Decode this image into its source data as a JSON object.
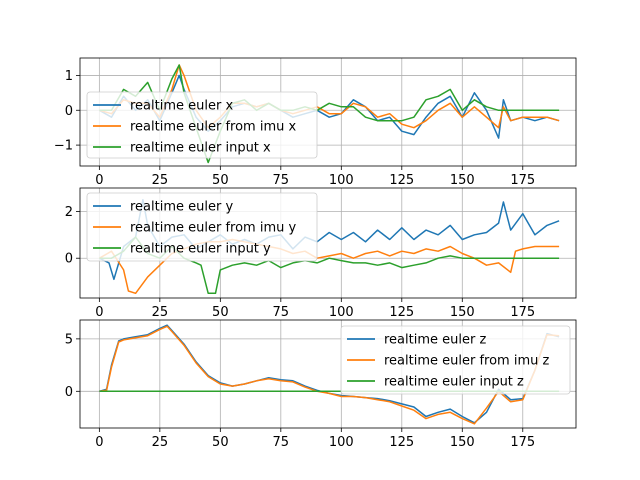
{
  "chart_data": [
    {
      "type": "line",
      "xlim": [
        -8,
        197
      ],
      "ylim": [
        -1.6,
        1.5
      ],
      "xticks": [
        0,
        25,
        50,
        75,
        100,
        125,
        150,
        175
      ],
      "yticks": [
        -1,
        0,
        1
      ],
      "grid": true,
      "legend_loc": "lower-left",
      "colors": [
        "#1f77b4",
        "#ff7f0e",
        "#2ca02c"
      ],
      "series": [
        {
          "name": "realtime euler x",
          "x": [
            0,
            5,
            10,
            15,
            20,
            25,
            30,
            33,
            35,
            40,
            45,
            50,
            55,
            60,
            65,
            70,
            75,
            80,
            85,
            90,
            95,
            100,
            105,
            110,
            115,
            120,
            125,
            130,
            135,
            140,
            145,
            150,
            155,
            160,
            165,
            167,
            170,
            175,
            180,
            185,
            190
          ],
          "y": [
            0.0,
            -0.2,
            0.4,
            0.0,
            0.3,
            -0.3,
            0.5,
            1.0,
            0.6,
            -0.2,
            -0.6,
            -0.3,
            0.1,
            0.2,
            0.1,
            0.2,
            0.0,
            -0.2,
            -0.1,
            0.0,
            -0.2,
            -0.1,
            0.3,
            0.1,
            -0.3,
            -0.2,
            -0.6,
            -0.7,
            -0.2,
            0.2,
            0.4,
            -0.2,
            0.5,
            0.0,
            -0.8,
            0.3,
            -0.3,
            -0.2,
            -0.3,
            -0.2,
            -0.3
          ]
        },
        {
          "name": "realtime euler from imu x",
          "x": [
            0,
            5,
            10,
            15,
            20,
            25,
            30,
            33,
            35,
            40,
            45,
            50,
            55,
            60,
            65,
            70,
            75,
            80,
            85,
            90,
            95,
            100,
            105,
            110,
            115,
            120,
            125,
            130,
            135,
            140,
            145,
            150,
            155,
            160,
            165,
            167,
            170,
            175,
            180,
            185,
            190
          ],
          "y": [
            0.0,
            -0.1,
            0.3,
            0.2,
            0.2,
            -0.2,
            0.6,
            1.3,
            1.0,
            0.0,
            -0.5,
            -0.2,
            0.2,
            0.2,
            0.1,
            0.2,
            0.0,
            -0.1,
            0.0,
            0.1,
            -0.1,
            -0.1,
            0.2,
            0.1,
            -0.2,
            -0.1,
            -0.4,
            -0.5,
            -0.3,
            0.0,
            0.2,
            -0.2,
            0.1,
            -0.2,
            -0.5,
            0.1,
            -0.3,
            -0.2,
            -0.2,
            -0.2,
            -0.3
          ]
        },
        {
          "name": "realtime euler input x",
          "x": [
            0,
            5,
            10,
            15,
            20,
            25,
            30,
            33,
            35,
            40,
            45,
            50,
            55,
            60,
            65,
            70,
            75,
            80,
            85,
            90,
            95,
            100,
            105,
            110,
            115,
            120,
            125,
            130,
            135,
            140,
            145,
            150,
            155,
            160,
            165,
            167,
            170,
            175,
            180,
            185,
            190
          ],
          "y": [
            0.0,
            0.0,
            0.6,
            0.4,
            0.8,
            0.0,
            0.9,
            1.3,
            0.5,
            -0.5,
            -1.5,
            -0.6,
            0.2,
            0.3,
            0.0,
            0.2,
            0.0,
            0.0,
            0.1,
            0.0,
            0.2,
            0.1,
            0.1,
            -0.2,
            -0.3,
            -0.3,
            -0.3,
            -0.2,
            0.3,
            0.4,
            0.6,
            0.0,
            0.3,
            0.1,
            0.0,
            0.0,
            0.0,
            0.0,
            0.0,
            0.0,
            0.0
          ]
        }
      ]
    },
    {
      "type": "line",
      "xlim": [
        -8,
        197
      ],
      "ylim": [
        -1.7,
        3.0
      ],
      "xticks": [
        0,
        25,
        50,
        75,
        100,
        125,
        150,
        175
      ],
      "yticks": [
        0,
        2
      ],
      "grid": true,
      "legend_loc": "upper-left",
      "colors": [
        "#1f77b4",
        "#ff7f0e",
        "#2ca02c"
      ],
      "series": [
        {
          "name": "realtime euler y",
          "x": [
            0,
            4,
            6,
            10,
            15,
            18,
            20,
            25,
            30,
            35,
            40,
            45,
            50,
            55,
            60,
            65,
            70,
            75,
            80,
            85,
            90,
            95,
            100,
            105,
            110,
            115,
            120,
            125,
            130,
            135,
            140,
            145,
            150,
            155,
            160,
            165,
            167,
            170,
            175,
            180,
            185,
            190
          ],
          "y": [
            0.0,
            -0.2,
            -0.9,
            0.5,
            0.9,
            2.5,
            1.4,
            0.5,
            0.9,
            1.0,
            0.4,
            0.7,
            1.0,
            0.6,
            0.8,
            0.6,
            0.9,
            1.0,
            0.4,
            0.9,
            0.7,
            1.1,
            0.8,
            1.1,
            0.7,
            1.2,
            0.8,
            1.3,
            0.8,
            1.2,
            1.0,
            1.4,
            0.8,
            1.0,
            1.1,
            1.5,
            2.4,
            1.2,
            1.9,
            1.0,
            1.4,
            1.6
          ]
        },
        {
          "name": "realtime euler from imu y",
          "x": [
            0,
            5,
            10,
            12,
            15,
            20,
            25,
            30,
            35,
            40,
            45,
            50,
            55,
            60,
            65,
            70,
            75,
            80,
            85,
            90,
            95,
            100,
            105,
            110,
            115,
            120,
            125,
            130,
            135,
            140,
            145,
            150,
            155,
            160,
            165,
            170,
            172,
            175,
            180,
            185,
            190
          ],
          "y": [
            0.0,
            0.3,
            -0.5,
            -1.4,
            -1.5,
            -0.8,
            -0.3,
            0.2,
            0.4,
            0.6,
            0.7,
            0.7,
            0.8,
            0.7,
            0.6,
            0.5,
            0.4,
            0.2,
            0.3,
            0.0,
            0.1,
            0.2,
            0.0,
            0.2,
            0.3,
            0.1,
            0.3,
            0.2,
            0.4,
            0.3,
            0.5,
            0.2,
            0.0,
            -0.3,
            -0.2,
            -0.6,
            0.3,
            0.4,
            0.5,
            0.5,
            0.5
          ]
        },
        {
          "name": "realtime euler input y",
          "x": [
            0,
            5,
            10,
            15,
            20,
            25,
            30,
            35,
            40,
            42,
            45,
            48,
            50,
            55,
            60,
            65,
            70,
            75,
            80,
            85,
            90,
            95,
            100,
            105,
            110,
            115,
            120,
            125,
            130,
            135,
            140,
            145,
            150,
            155,
            160,
            170,
            180,
            190
          ],
          "y": [
            0.0,
            0.0,
            0.3,
            0.9,
            0.2,
            0.0,
            0.5,
            0.0,
            -0.2,
            -0.3,
            -1.5,
            -1.5,
            -0.5,
            -0.3,
            -0.2,
            -0.3,
            -0.1,
            -0.4,
            -0.2,
            -0.1,
            -0.2,
            0.0,
            -0.1,
            -0.2,
            -0.2,
            -0.3,
            -0.2,
            -0.4,
            -0.3,
            -0.2,
            0.0,
            0.1,
            0.0,
            0.0,
            0.0,
            0.0,
            0.0,
            0.0
          ]
        }
      ]
    },
    {
      "type": "line",
      "xlim": [
        -8,
        197
      ],
      "ylim": [
        -3.5,
        6.8
      ],
      "xticks": [
        0,
        25,
        50,
        75,
        100,
        125,
        150,
        175
      ],
      "yticks": [
        0,
        5
      ],
      "grid": true,
      "legend_loc": "upper-right",
      "colors": [
        "#1f77b4",
        "#ff7f0e",
        "#2ca02c"
      ],
      "series": [
        {
          "name": "realtime euler z",
          "x": [
            0,
            3,
            5,
            8,
            10,
            15,
            20,
            25,
            28,
            30,
            35,
            40,
            45,
            50,
            55,
            60,
            65,
            70,
            75,
            80,
            85,
            90,
            95,
            100,
            105,
            110,
            115,
            120,
            125,
            130,
            135,
            140,
            145,
            150,
            155,
            160,
            165,
            170,
            175,
            180,
            185,
            190
          ],
          "y": [
            0.0,
            0.2,
            2.5,
            4.8,
            5.0,
            5.2,
            5.4,
            6.0,
            6.3,
            5.8,
            4.5,
            2.8,
            1.5,
            0.8,
            0.5,
            0.7,
            1.0,
            1.3,
            1.1,
            1.0,
            0.5,
            0.1,
            -0.2,
            -0.4,
            -0.5,
            -0.6,
            -0.7,
            -0.9,
            -1.2,
            -1.5,
            -2.4,
            -2.0,
            -1.7,
            -2.4,
            -3.0,
            -2.0,
            0.2,
            -0.8,
            -0.7,
            2.0,
            5.5,
            5.2
          ]
        },
        {
          "name": "realtime euler from imu z",
          "x": [
            0,
            3,
            5,
            8,
            10,
            15,
            20,
            25,
            28,
            30,
            35,
            40,
            45,
            50,
            55,
            60,
            65,
            70,
            75,
            80,
            85,
            90,
            95,
            100,
            105,
            110,
            115,
            120,
            125,
            130,
            135,
            140,
            145,
            150,
            155,
            160,
            165,
            170,
            175,
            180,
            185,
            190
          ],
          "y": [
            0.0,
            0.1,
            2.3,
            4.7,
            4.9,
            5.1,
            5.3,
            5.9,
            6.2,
            5.7,
            4.4,
            2.7,
            1.4,
            0.7,
            0.5,
            0.7,
            1.0,
            1.2,
            1.0,
            0.9,
            0.4,
            0.0,
            -0.2,
            -0.5,
            -0.5,
            -0.6,
            -0.8,
            -1.0,
            -1.4,
            -1.8,
            -2.6,
            -2.2,
            -2.0,
            -2.6,
            -3.1,
            -1.6,
            0.0,
            -1.0,
            -0.8,
            2.0,
            5.4,
            5.3
          ]
        },
        {
          "name": "realtime euler input z",
          "x": [
            0,
            190
          ],
          "y": [
            0.0,
            0.0
          ]
        }
      ]
    }
  ]
}
